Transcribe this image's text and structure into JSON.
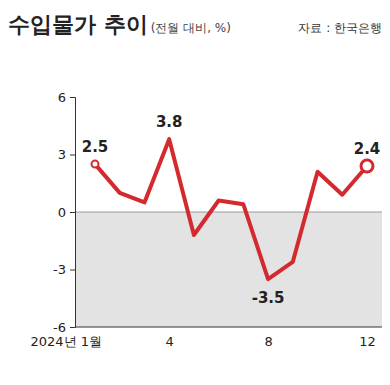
{
  "chart_data": {
    "type": "line",
    "title": "수입물가 추이",
    "subtitle": "(전월 대비, %)",
    "source": "자료 : 한국은행",
    "categories": [
      "2024년 1월",
      null,
      null,
      "4",
      null,
      null,
      null,
      "8",
      null,
      null,
      null,
      "12"
    ],
    "values": [
      2.5,
      1.0,
      0.5,
      3.8,
      -1.2,
      0.6,
      0.4,
      -3.5,
      -2.6,
      2.1,
      0.9,
      2.4
    ],
    "value_labels": [
      "2.5",
      null,
      null,
      "3.8",
      null,
      null,
      null,
      "-3.5",
      null,
      null,
      null,
      "2.4"
    ],
    "color": "#d42a2f",
    "ylim": [
      -6,
      6
    ],
    "yticks": [
      -6,
      -3,
      0,
      3,
      6
    ],
    "grid": false
  }
}
